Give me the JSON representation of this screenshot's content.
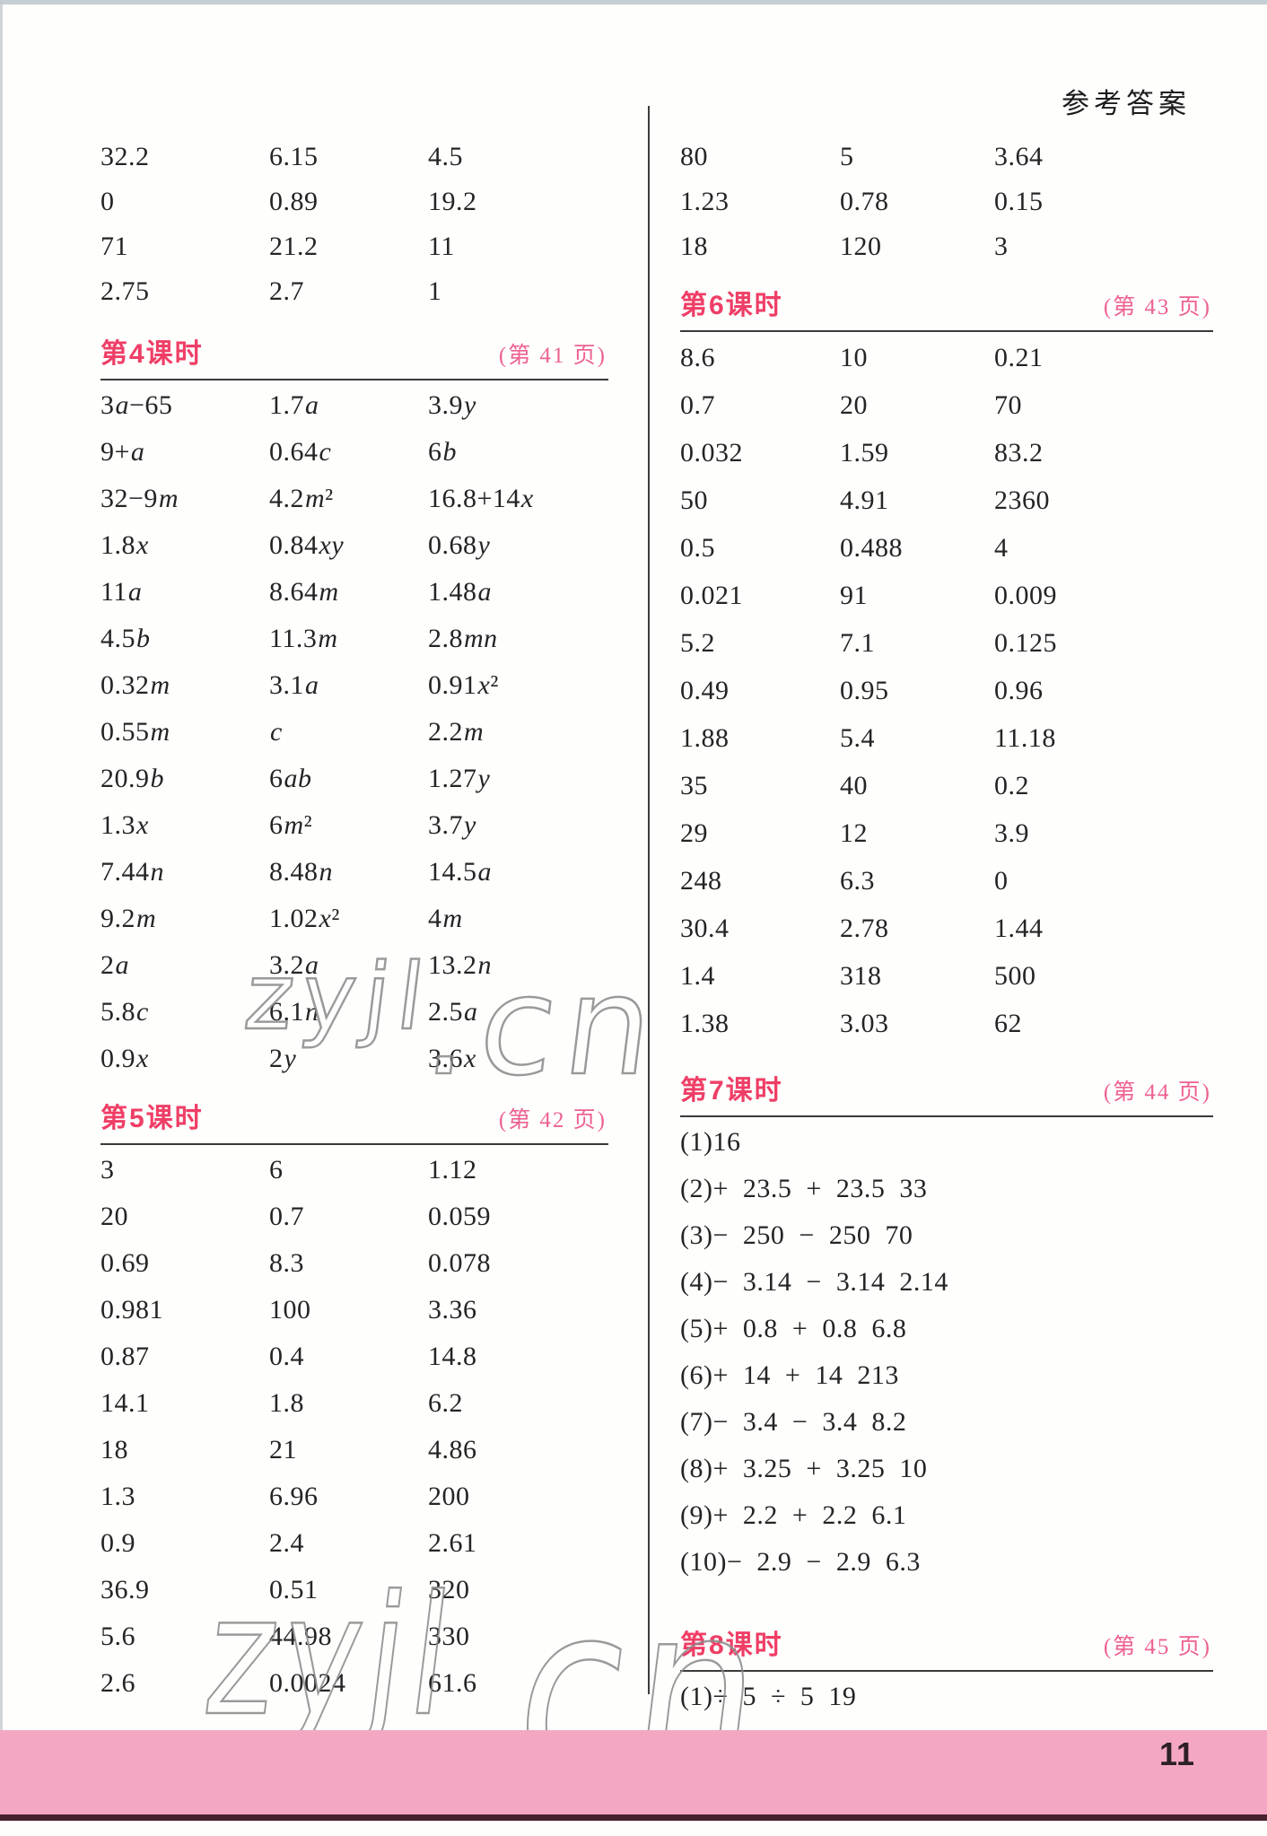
{
  "page": {
    "header_title": "参考答案",
    "page_number": "11",
    "watermark_small": "zyjl",
    "watermark_tail": ".cn"
  },
  "colors": {
    "section_title_pink": "#ef3e66",
    "page_ref_pink": "#ee6190",
    "footer_band_pink": "#f4a7c3",
    "footer_edge_dark": "#47222f",
    "body_text": "#242424",
    "rule_gray": "#3a3a3a",
    "watermark_gray": "#8d8d8d"
  },
  "columns": {
    "left": {
      "intro_rows": [
        [
          "32.2",
          "6.15",
          "4.5"
        ],
        [
          "0",
          "0.89",
          "19.2"
        ],
        [
          "71",
          "21.2",
          "11"
        ],
        [
          "2.75",
          "2.7",
          "1"
        ]
      ],
      "sections": [
        {
          "title": "第4课时",
          "page_ref": "(第 41 页)",
          "layout": "grid",
          "rows": [
            [
              "3a−65",
              "1.7a",
              "3.9y"
            ],
            [
              "9+a",
              "0.64c",
              "6b"
            ],
            [
              "32−9m",
              "4.2m²",
              "16.8+14x"
            ],
            [
              "1.8x",
              "0.84xy",
              "0.68y"
            ],
            [
              "11a",
              "8.64m",
              "1.48a"
            ],
            [
              "4.5b",
              "11.3m",
              "2.8mn"
            ],
            [
              "0.32m",
              "3.1a",
              "0.91x²"
            ],
            [
              "0.55m",
              "c",
              "2.2m"
            ],
            [
              "20.9b",
              "6ab",
              "1.27y"
            ],
            [
              "1.3x",
              "6m²",
              "3.7y"
            ],
            [
              "7.44n",
              "8.48n",
              "14.5a"
            ],
            [
              "9.2m",
              "1.02x²",
              "4m"
            ],
            [
              "2a",
              "3.2a",
              "13.2n"
            ],
            [
              "5.8c",
              "6.1n",
              "2.5a"
            ],
            [
              "0.9x",
              "2y",
              "3.6x"
            ]
          ]
        },
        {
          "title": "第5课时",
          "page_ref": "(第 42 页)",
          "layout": "grid",
          "rows": [
            [
              "3",
              "6",
              "1.12"
            ],
            [
              "20",
              "0.7",
              "0.059"
            ],
            [
              "0.69",
              "8.3",
              "0.078"
            ],
            [
              "0.981",
              "100",
              "3.36"
            ],
            [
              "0.87",
              "0.4",
              "14.8"
            ],
            [
              "14.1",
              "1.8",
              "6.2"
            ],
            [
              "18",
              "21",
              "4.86"
            ],
            [
              "1.3",
              "6.96",
              "200"
            ],
            [
              "0.9",
              "2.4",
              "2.61"
            ],
            [
              "36.9",
              "0.51",
              "320"
            ],
            [
              "5.6",
              "44.98",
              "330"
            ],
            [
              "2.6",
              "0.0024",
              "61.6"
            ]
          ]
        }
      ]
    },
    "right": {
      "intro_rows": [
        [
          "80",
          "5",
          "3.64"
        ],
        [
          "1.23",
          "0.78",
          "0.15"
        ],
        [
          "18",
          "120",
          "3"
        ]
      ],
      "sections": [
        {
          "title": "第6课时",
          "page_ref": "(第 43 页)",
          "layout": "grid",
          "rows": [
            [
              "8.6",
              "10",
              "0.21"
            ],
            [
              "0.7",
              "20",
              "70"
            ],
            [
              "0.032",
              "1.59",
              "83.2"
            ],
            [
              "50",
              "4.91",
              "2360"
            ],
            [
              "0.5",
              "0.488",
              "4"
            ],
            [
              "0.021",
              "91",
              "0.009"
            ],
            [
              "5.2",
              "7.1",
              "0.125"
            ],
            [
              "0.49",
              "0.95",
              "0.96"
            ],
            [
              "1.88",
              "5.4",
              "11.18"
            ],
            [
              "35",
              "40",
              "0.2"
            ],
            [
              "29",
              "12",
              "3.9"
            ],
            [
              "248",
              "6.3",
              "0"
            ],
            [
              "30.4",
              "2.78",
              "1.44"
            ],
            [
              "1.4",
              "318",
              "500"
            ],
            [
              "1.38",
              "3.03",
              "62"
            ]
          ]
        },
        {
          "title": "第7课时",
          "page_ref": "(第 44 页)",
          "layout": "lines",
          "lines": [
            "(1)16",
            "(2)+  23.5  +  23.5  33",
            "(3)−  250  −  250  70",
            "(4)−  3.14  −  3.14  2.14",
            "(5)+  0.8  +  0.8  6.8",
            "(6)+  14  +  14  213",
            "(7)−  3.4  −  3.4  8.2",
            "(8)+  3.25  +  3.25  10",
            "(9)+  2.2  +  2.2  6.1",
            "(10)−  2.9  −  2.9  6.3"
          ]
        },
        {
          "title": "第8课时",
          "page_ref": "(第 45 页)",
          "layout": "lines",
          "lines": [
            "(1)÷  5  ÷  5  19"
          ]
        }
      ]
    }
  }
}
